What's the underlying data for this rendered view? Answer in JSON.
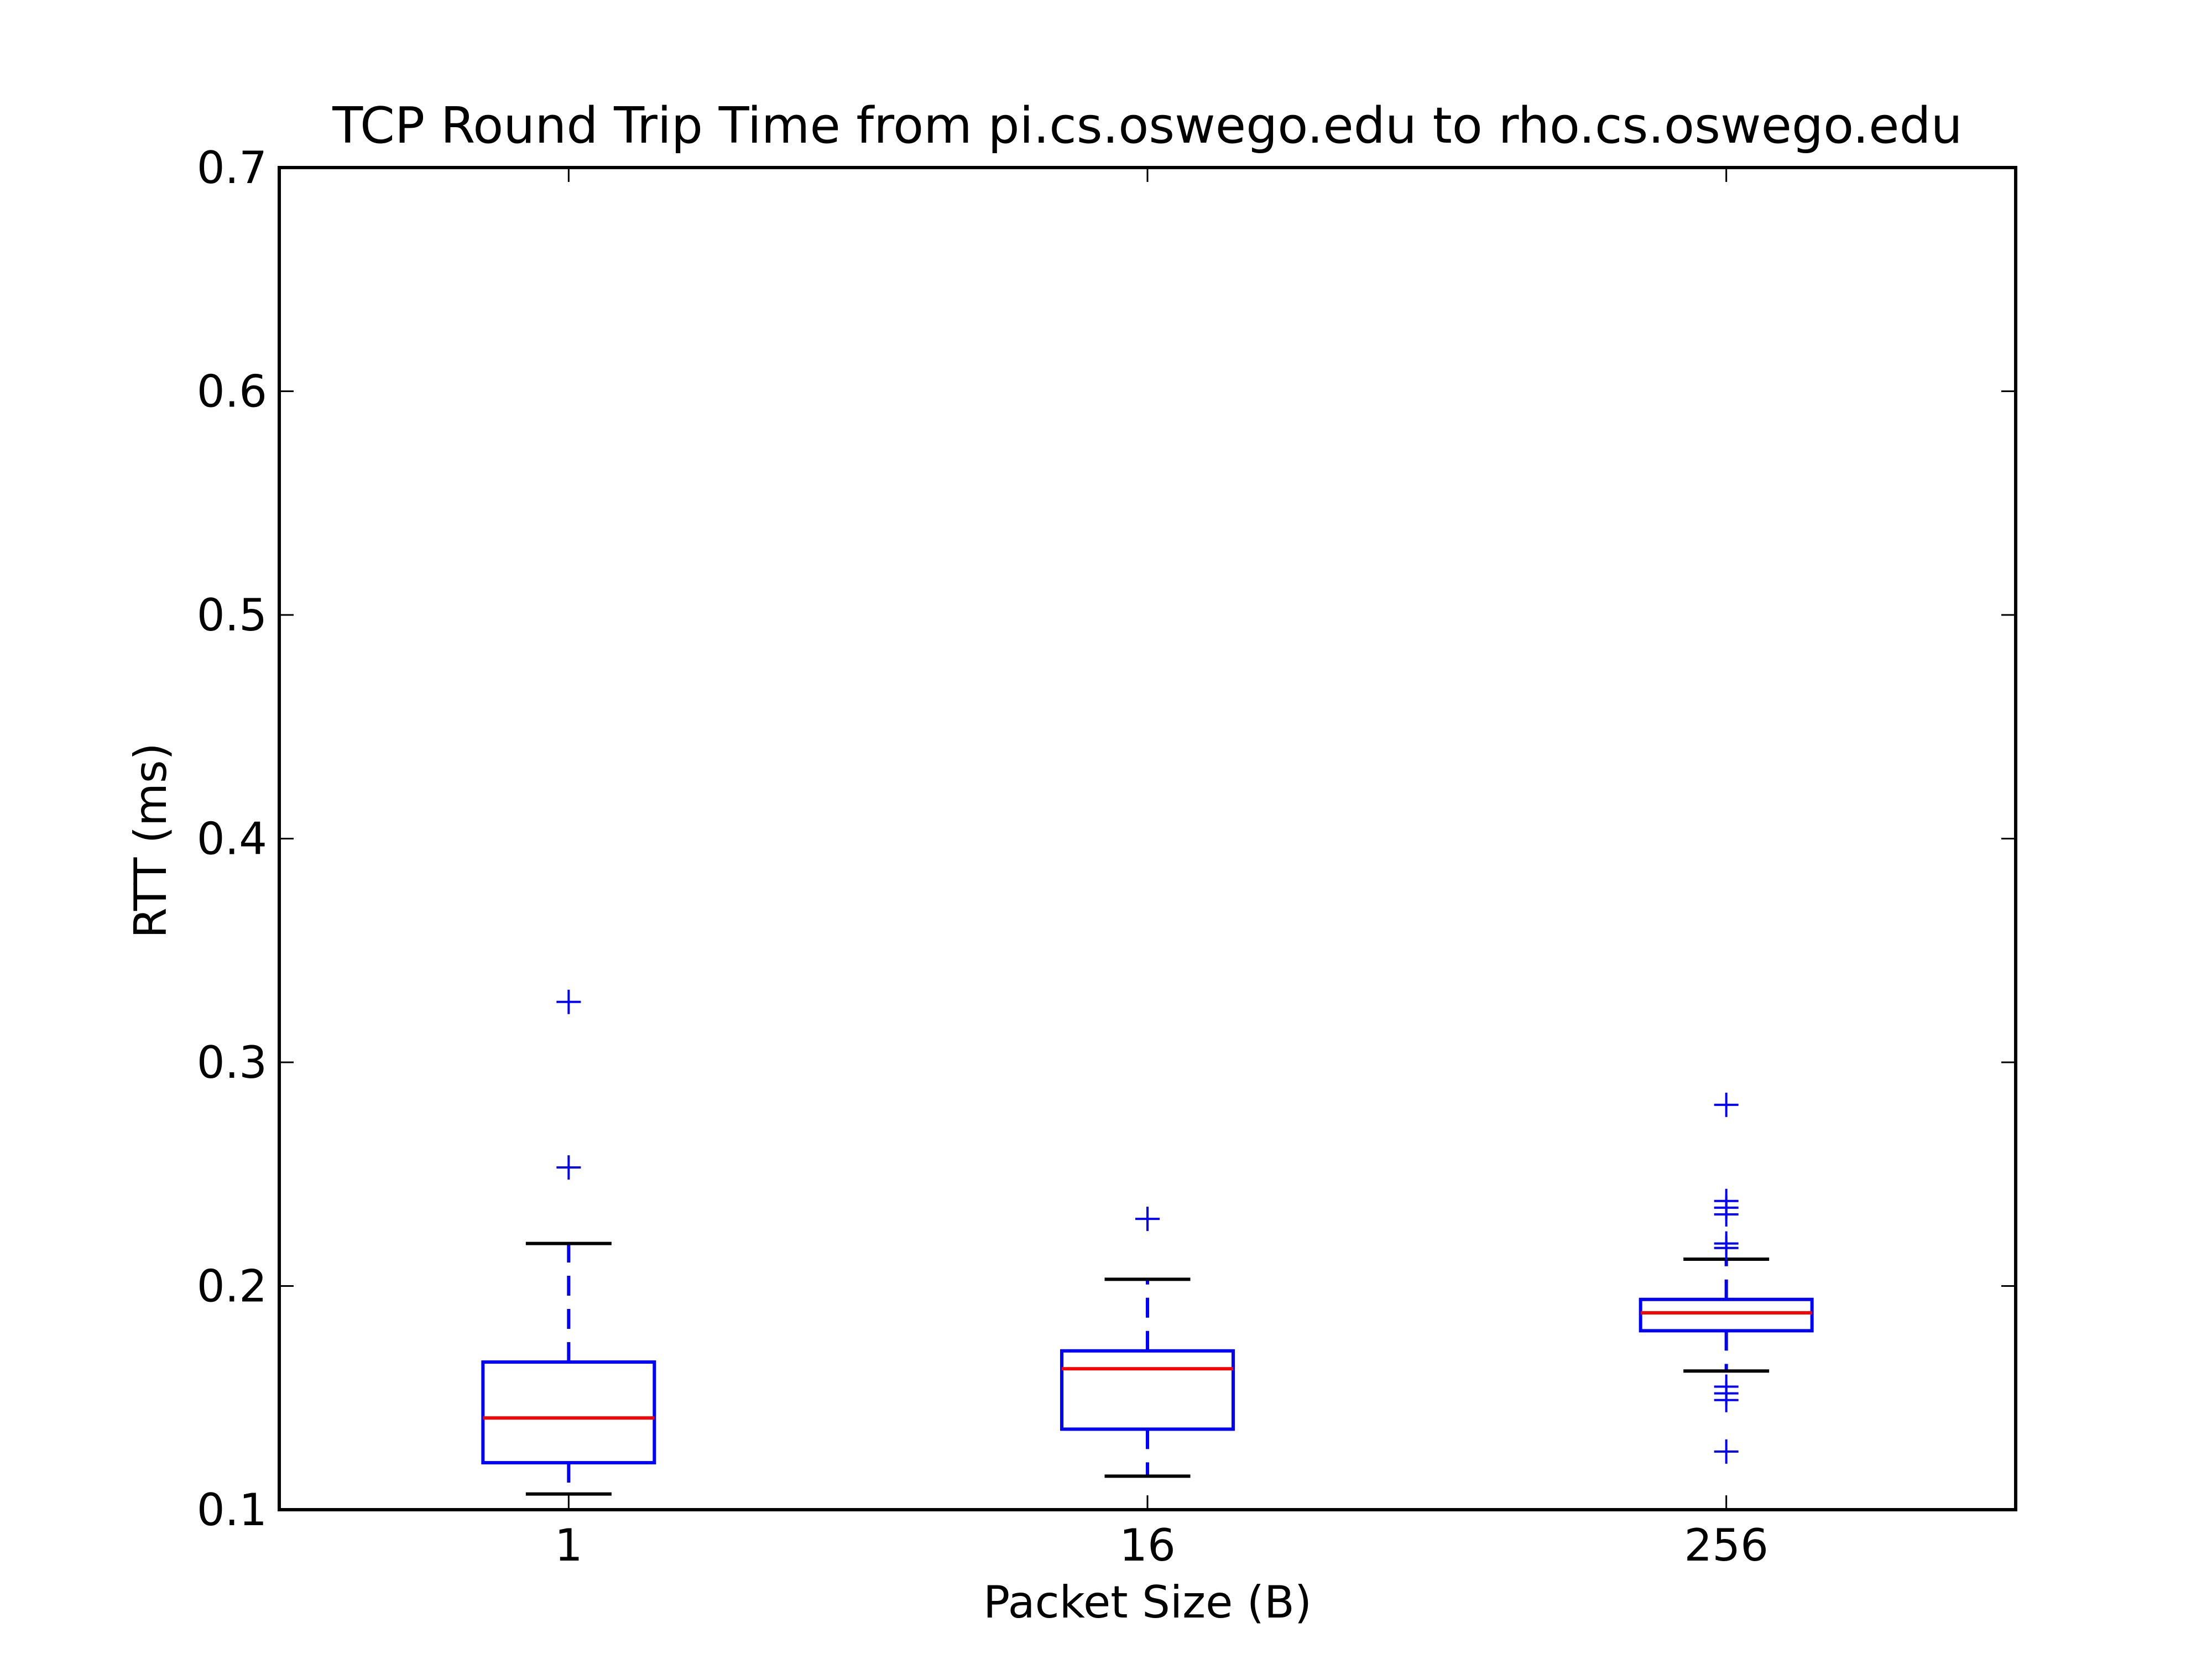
{
  "chart_data": {
    "type": "box",
    "title": "TCP Round Trip Time from pi.cs.oswego.edu to rho.cs.oswego.edu",
    "xlabel": "Packet Size (B)",
    "ylabel": "RTT (ms)",
    "ylim": [
      0.1,
      0.7
    ],
    "yticks": [
      0.1,
      0.2,
      0.3,
      0.4,
      0.5,
      0.6,
      0.7
    ],
    "ytick_labels": [
      "0.1",
      "0.2",
      "0.3",
      "0.4",
      "0.5",
      "0.6",
      "0.7"
    ],
    "categories": [
      "1",
      "16",
      "256"
    ],
    "grid": false,
    "legend": "none",
    "colors": {
      "box": "#0000ff",
      "median": "#ff0000",
      "cap": "#000000",
      "flier": "#0000ff"
    },
    "boxes": [
      {
        "category": "1",
        "whislo": 0.107,
        "q1": 0.121,
        "median": 0.141,
        "q3": 0.166,
        "whishi": 0.219,
        "fliers": [
          0.253,
          0.327
        ]
      },
      {
        "category": "16",
        "whislo": 0.115,
        "q1": 0.136,
        "median": 0.163,
        "q3": 0.171,
        "whishi": 0.203,
        "fliers": [
          0.23
        ]
      },
      {
        "category": "256",
        "whislo": 0.162,
        "q1": 0.18,
        "median": 0.188,
        "q3": 0.194,
        "whishi": 0.212,
        "fliers": [
          0.126,
          0.149,
          0.152,
          0.155,
          0.217,
          0.219,
          0.232,
          0.235,
          0.238,
          0.281
        ]
      }
    ]
  }
}
